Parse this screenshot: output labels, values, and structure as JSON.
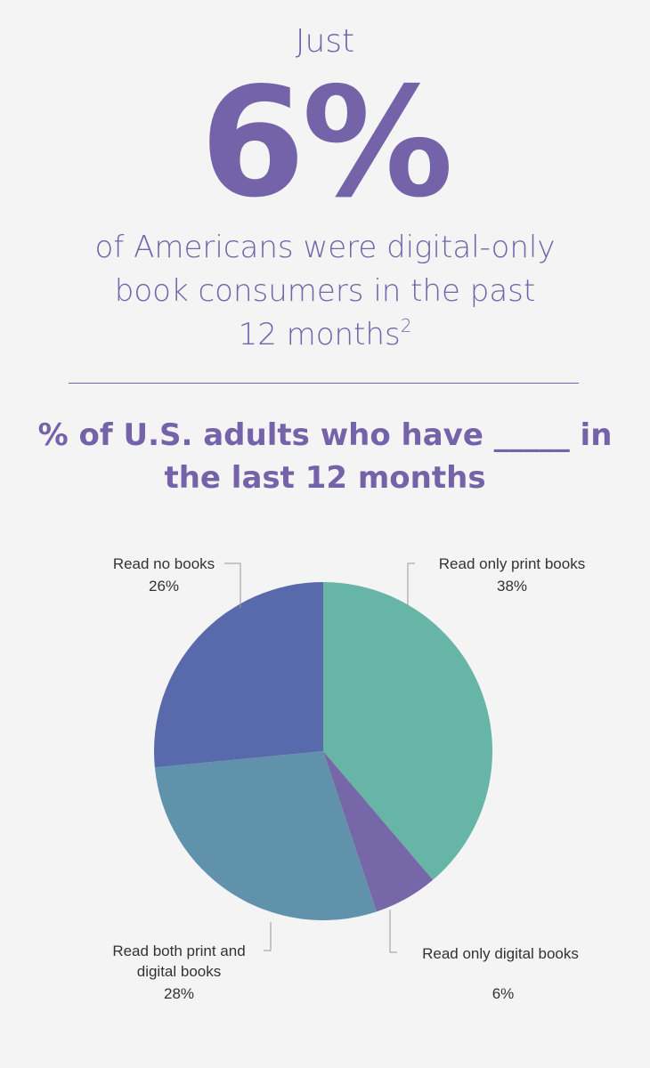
{
  "header": {
    "lead": "Just",
    "stat": "6%",
    "sub_line1": "of Americans were digital-only",
    "sub_line2": "book consumers in the past",
    "sub_line3": "12 months",
    "footnote": "2"
  },
  "chart_heading": {
    "line1": "% of U.S. adults who have _____ in",
    "line2": "the last 12 months"
  },
  "chart_data": {
    "type": "pie",
    "title": "% of U.S. adults who have _____ in the last 12 months",
    "slices": [
      {
        "label": "Read only print books",
        "value": 38,
        "display": "38%",
        "color": "#67b5a7"
      },
      {
        "label": "Read only digital books",
        "value": 6,
        "display": "6%",
        "color": "#7667a9"
      },
      {
        "label": "Read both print and digital books",
        "label_lines": [
          "Read both print and",
          "digital books"
        ],
        "value": 28,
        "display": "28%",
        "color": "#6092ab"
      },
      {
        "label": "Read no books",
        "value": 26,
        "display": "26%",
        "color": "#586aab"
      }
    ],
    "start": "top",
    "direction": "clockwise"
  },
  "colors": {
    "text": "#7463a8",
    "background": "#f4f4f4"
  }
}
